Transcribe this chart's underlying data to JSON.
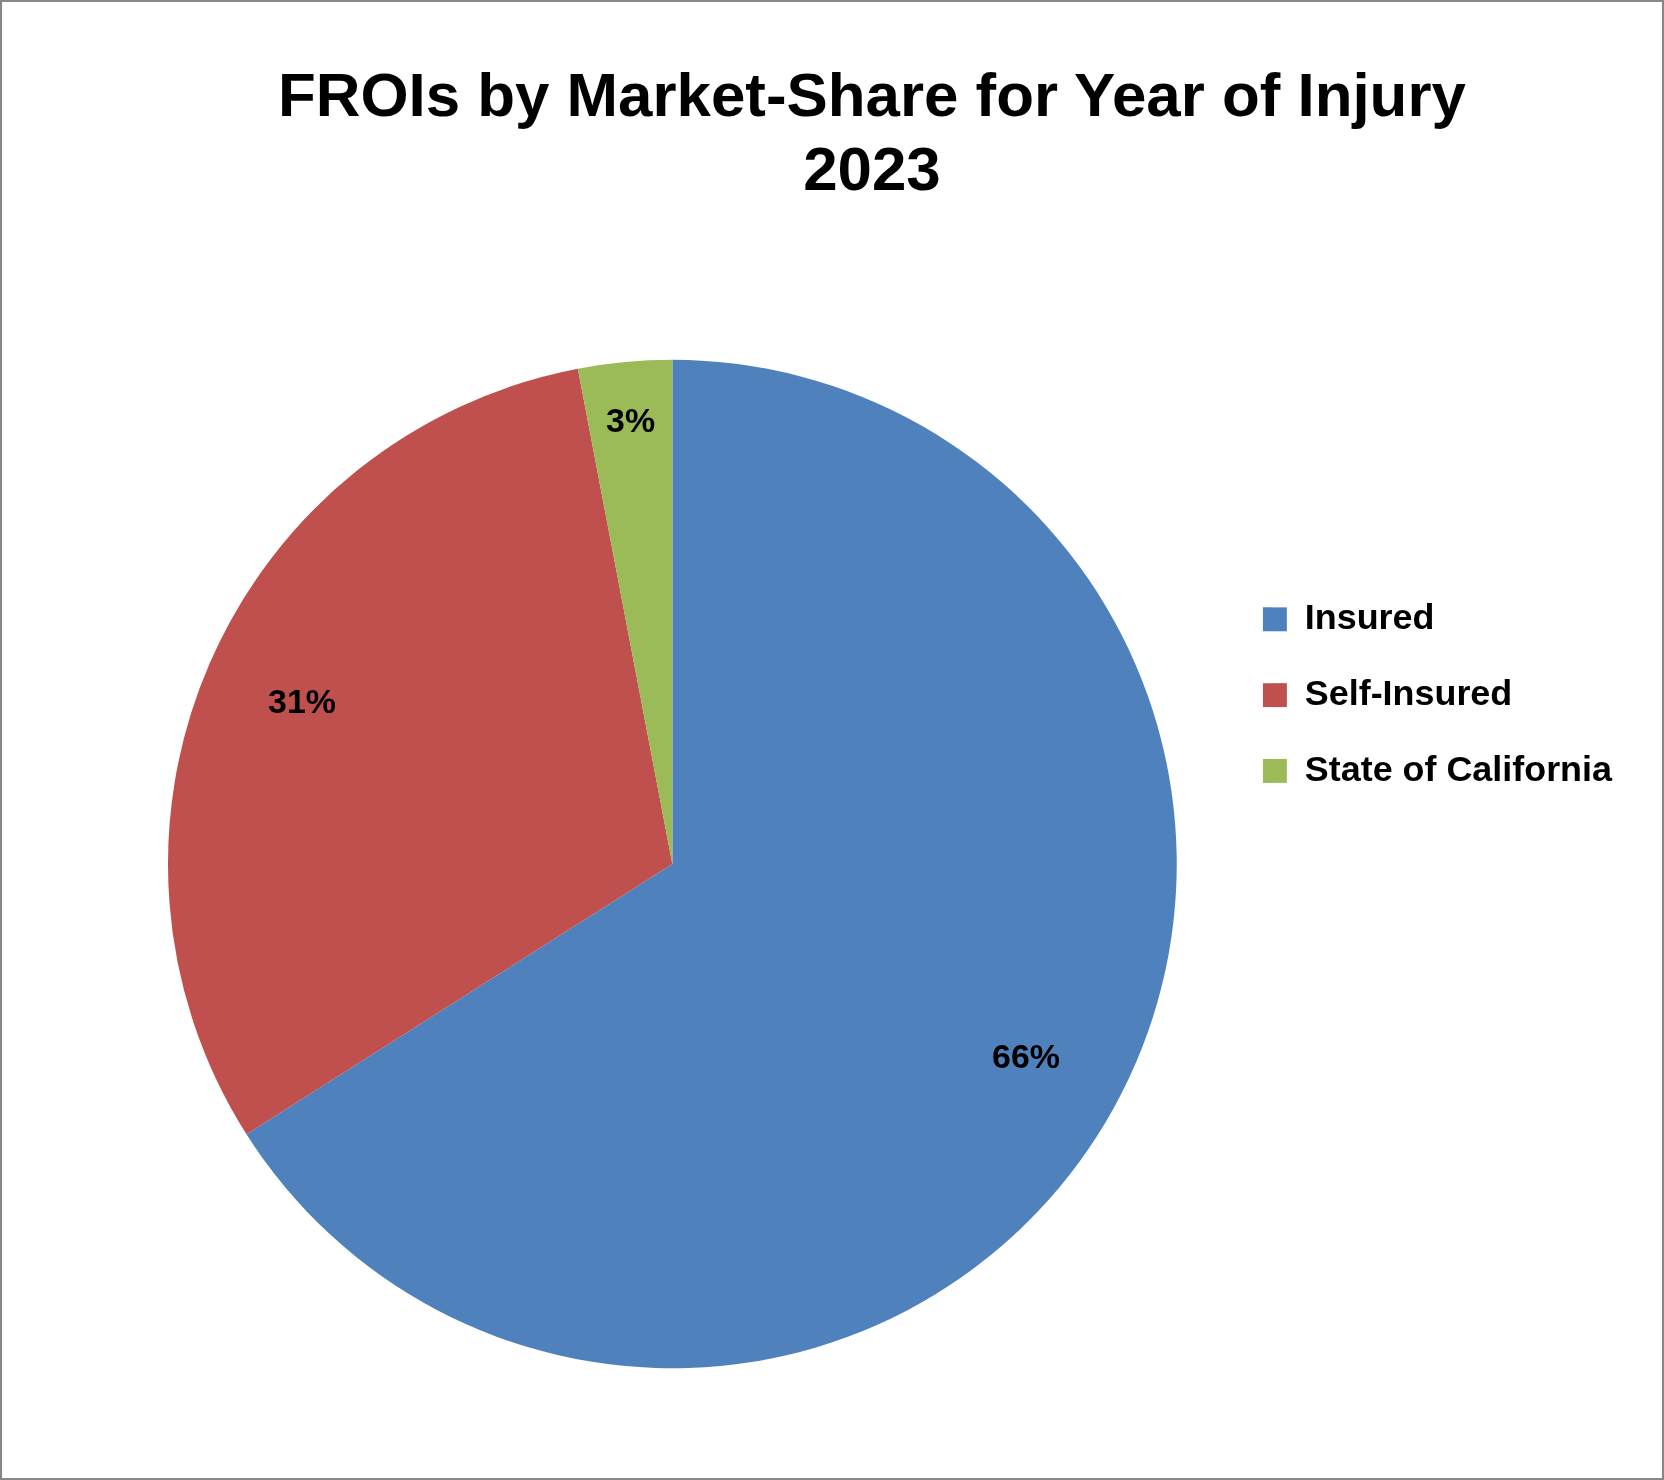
{
  "chart_data": {
    "type": "pie",
    "title": "FROIs by Market-Share for Year of Injury 2023",
    "categories": [
      "Insured",
      "Self-Insured",
      "State of California"
    ],
    "values": [
      66,
      31,
      3
    ],
    "colors": [
      "#4f81bd",
      "#c0504d",
      "#9bbb59"
    ],
    "value_labels": [
      "66%",
      "31%",
      "3%"
    ],
    "legend": "right"
  }
}
